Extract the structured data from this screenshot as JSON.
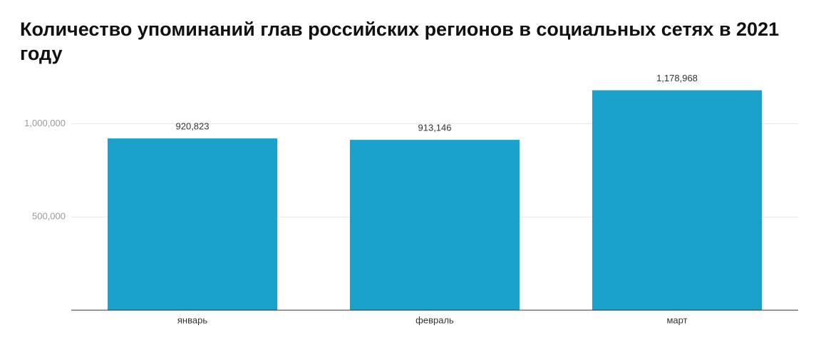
{
  "chart_data": {
    "type": "bar",
    "title": "Количество упоминаний глав российских регионов в социальных сетях в 2021 году",
    "categories": [
      "январь",
      "февраль",
      "март"
    ],
    "values": [
      920823,
      913146,
      1178968
    ],
    "value_labels": [
      "920,823",
      "913,146",
      "1,178,968"
    ],
    "color": "#1aa1cc",
    "ylim": [
      0,
      1250000
    ],
    "yticks": [
      {
        "value": 500000,
        "label": "500,000"
      },
      {
        "value": 1000000,
        "label": "1,000,000"
      }
    ],
    "grid": true
  }
}
